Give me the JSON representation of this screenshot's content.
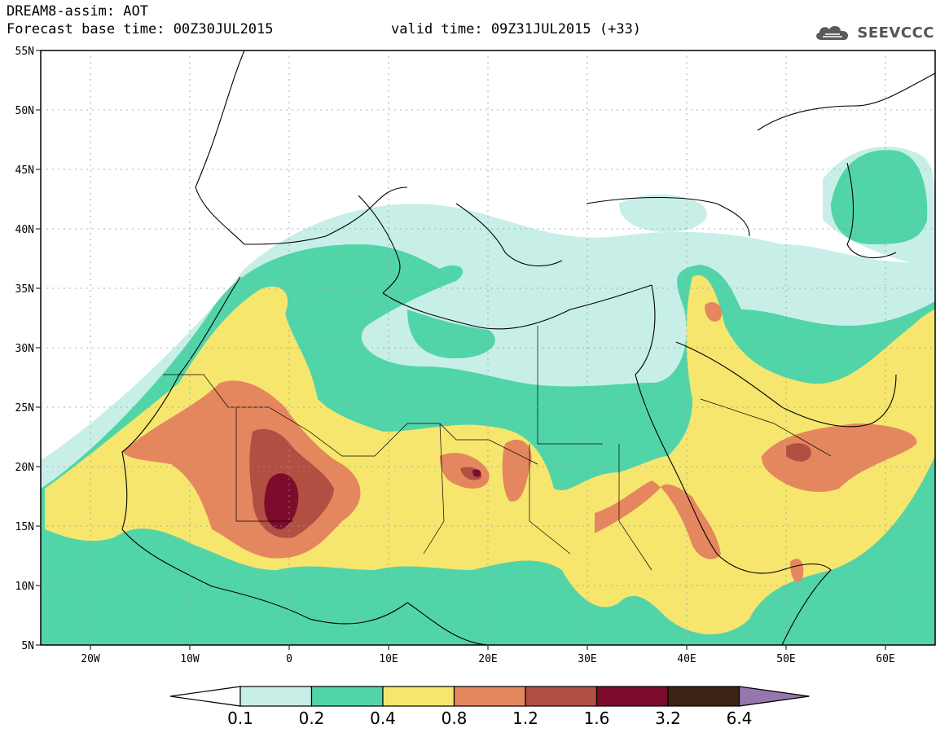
{
  "header": {
    "title": "DREAM8-assim: AOT",
    "base_time": "Forecast base time: 00Z30JUL2015",
    "valid_time": "valid time: 09Z31JUL2015 (+33)"
  },
  "logo": {
    "icon": "cloud-icon",
    "text": "SEEVCCC"
  },
  "map": {
    "lon_range": [
      -25,
      65
    ],
    "lat_range": [
      5,
      55
    ],
    "lat_labels": [
      "5N",
      "10N",
      "15N",
      "20N",
      "25N",
      "30N",
      "35N",
      "40N",
      "45N",
      "50N",
      "55N"
    ],
    "lat_values": [
      5,
      10,
      15,
      20,
      25,
      30,
      35,
      40,
      45,
      50,
      55
    ],
    "lon_labels": [
      "20W",
      "10W",
      "0",
      "10E",
      "20E",
      "30E",
      "40E",
      "50E",
      "60E"
    ],
    "lon_values": [
      -20,
      -10,
      0,
      10,
      20,
      30,
      40,
      50,
      60
    ],
    "colors": {
      "aot_0_1": "#c7efe8",
      "aot_0_2": "#52d4a9",
      "aot_0_4": "#f6e66e",
      "aot_0_8": "#e5875e",
      "aot_1_2": "#b24f43",
      "aot_1_6": "#7c0b2c",
      "aot_3_2": "#3d2314",
      "aot_6_4": "#9577ad",
      "coastline": "#000000"
    }
  },
  "colorbar": {
    "labels": [
      "0.1",
      "0.2",
      "0.4",
      "0.8",
      "1.2",
      "1.6",
      "3.2",
      "6.4"
    ],
    "colors": [
      "#c7efe8",
      "#52d4a9",
      "#f6e66e",
      "#e5875e",
      "#b24f43",
      "#7c0b2c",
      "#3d2314"
    ],
    "under_color": "#ffffff",
    "over_color": "#9577ad"
  }
}
